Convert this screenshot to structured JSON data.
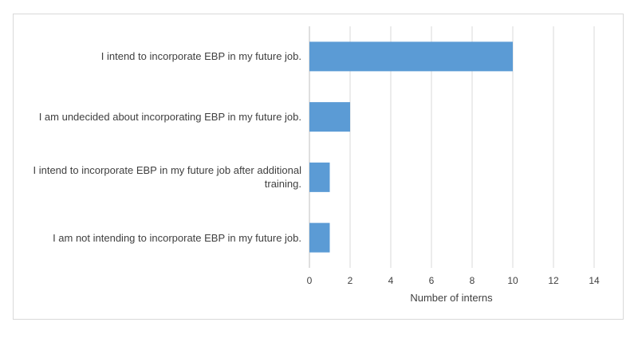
{
  "chart_data": {
    "type": "bar",
    "orientation": "horizontal",
    "categories": [
      "I intend to incorporate EBP in my future job.",
      "I am undecided about incorporating EBP in my future job.",
      "I intend to incorporate EBP in my future job after additional training.",
      "I am not intending to incorporate EBP in my future job."
    ],
    "values": [
      10,
      2,
      1,
      1
    ],
    "xlabel": "Number of interns",
    "ylabel": "",
    "title": "",
    "xlim": [
      0,
      14
    ],
    "xticks": [
      0,
      2,
      4,
      6,
      8,
      10,
      12,
      14
    ],
    "grid": "vertical",
    "legend": "none",
    "bar_color": "#5b9bd5",
    "grid_color": "#d9d9d9"
  }
}
